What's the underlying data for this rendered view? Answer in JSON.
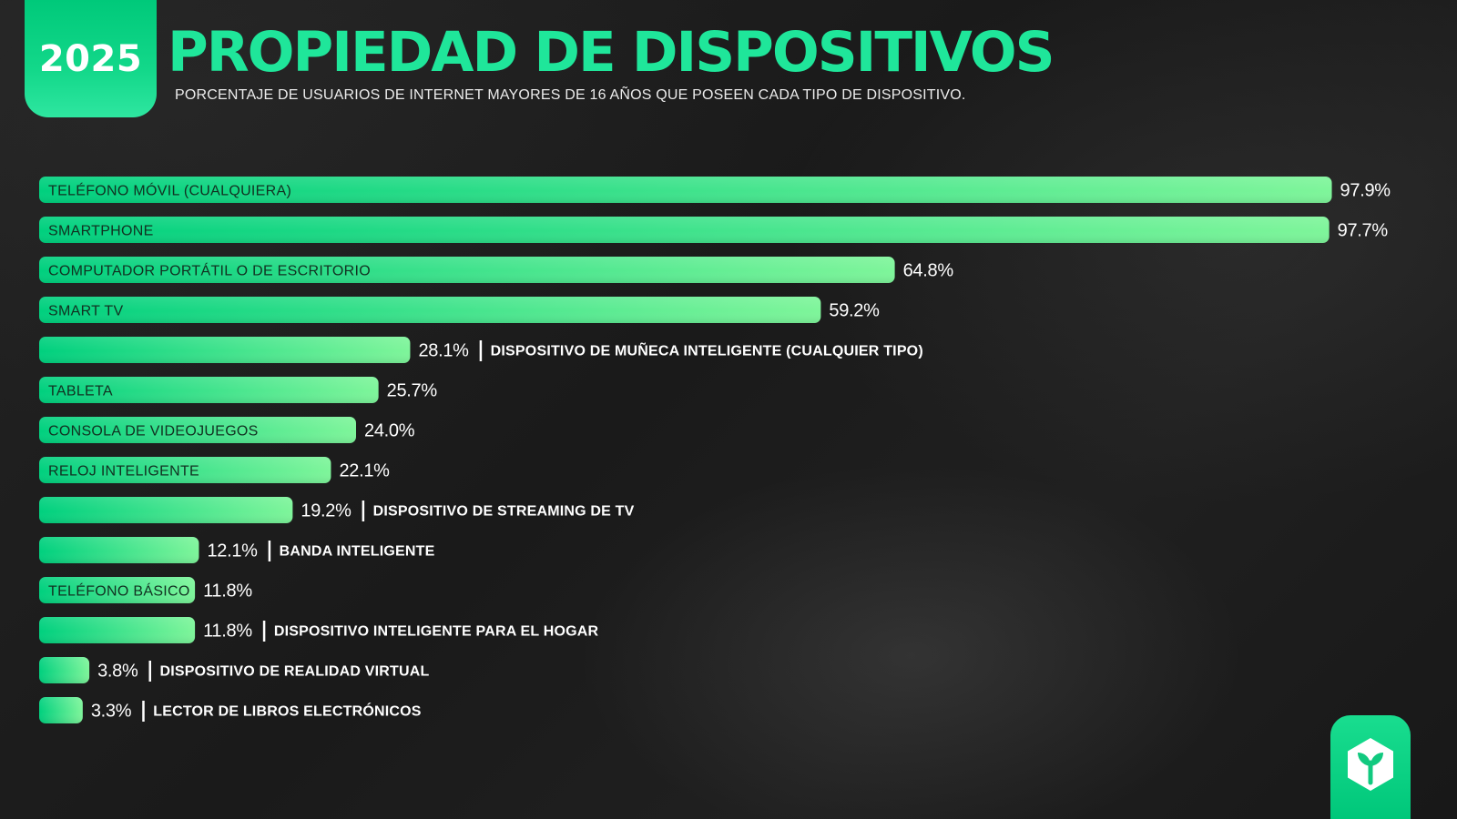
{
  "header": {
    "year": "2025",
    "title": "PROPIEDAD DE DISPOSITIVOS",
    "subtitle": "PORCENTAJE DE USUARIOS DE INTERNET MAYORES DE 16 AÑOS QUE POSEEN CADA TIPO DE DISPOSITIVO."
  },
  "logo": {
    "icon": "leaf-hexagon-icon"
  },
  "colors": {
    "bar_start": "#00d07e",
    "bar_end": "#7ef59a",
    "title": "#1fe69a",
    "text_light": "#ffffff",
    "text_dark": "#123021"
  },
  "chart_data": {
    "type": "bar",
    "orientation": "horizontal",
    "xlim": [
      0,
      100
    ],
    "grid": false,
    "legend": "none",
    "title": "PROPIEDAD DE DISPOSITIVOS",
    "categories": [
      "TELÉFONO MÓVIL (CUALQUIERA)",
      "SMARTPHONE",
      "COMPUTADOR PORTÁTIL O DE ESCRITORIO",
      "SMART TV",
      "DISPOSITIVO DE MUÑECA INTELIGENTE (CUALQUIER TIPO)",
      "TABLETA",
      "CONSOLA DE VIDEOJUEGOS",
      "RELOJ INTELIGENTE",
      "DISPOSITIVO DE STREAMING DE TV",
      "BANDA INTELIGENTE",
      "TELÉFONO BÁSICO",
      "DISPOSITIVO INTELIGENTE PARA EL HOGAR",
      "DISPOSITIVO DE REALIDAD VIRTUAL",
      "LECTOR DE LIBROS ELECTRÓNICOS"
    ],
    "values": [
      97.9,
      97.7,
      64.8,
      59.2,
      28.1,
      25.7,
      24.0,
      22.1,
      19.2,
      12.1,
      11.8,
      11.8,
      3.8,
      3.3
    ],
    "value_labels": [
      "97.9%",
      "97.7%",
      "64.8%",
      "59.2%",
      "28.1%",
      "25.7%",
      "24.0%",
      "22.1%",
      "19.2%",
      "12.1%",
      "11.8%",
      "11.8%",
      "3.8%",
      "3.3%"
    ],
    "label_inside_bar": [
      true,
      true,
      true,
      true,
      false,
      true,
      true,
      true,
      false,
      false,
      true,
      false,
      false,
      false
    ]
  }
}
